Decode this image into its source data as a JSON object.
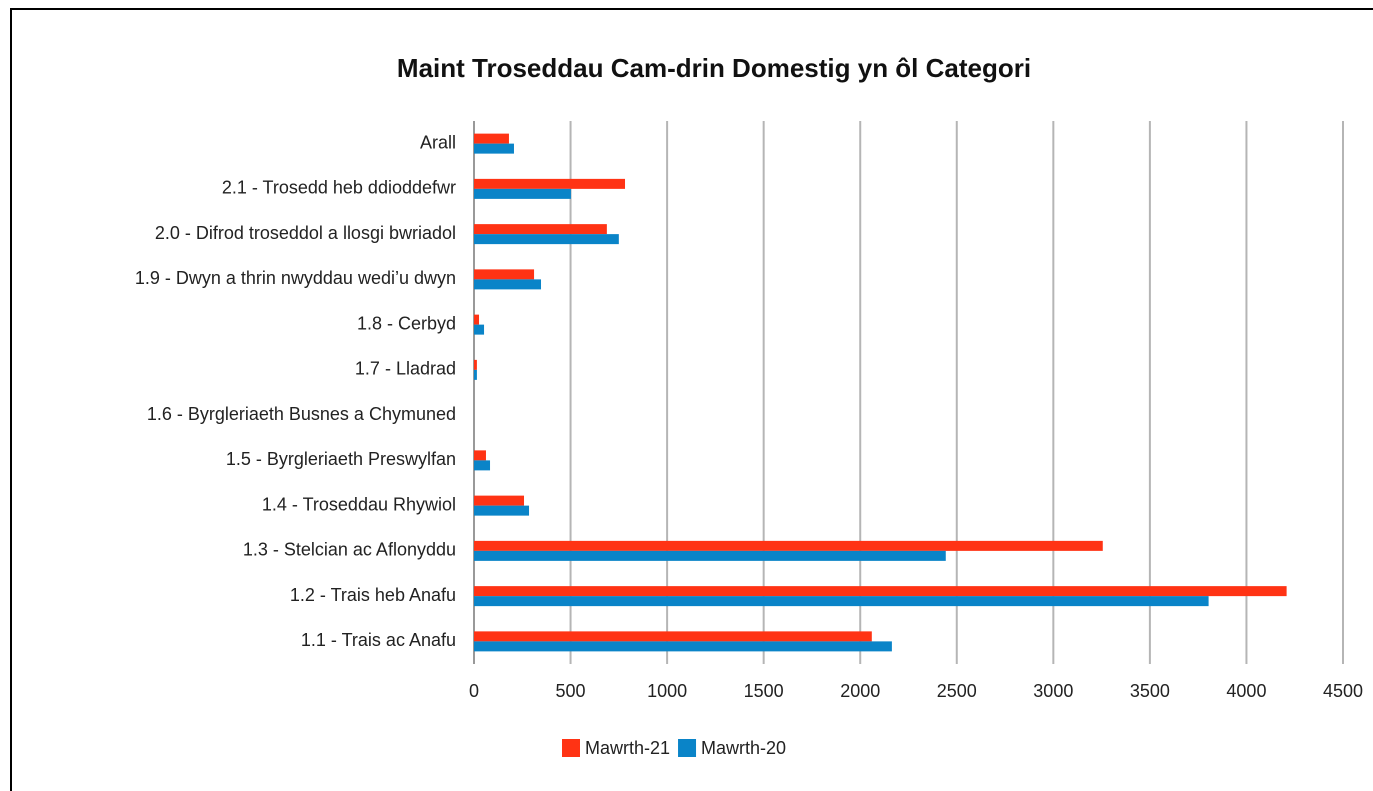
{
  "chart_data": {
    "type": "hbar",
    "title": "Maint Troseddau Cam-drin Domestig yn ôl Categori",
    "categories": [
      "Arall",
      "2.1 - Trosedd heb ddioddefwr",
      "2.0 - Difrod troseddol a llosgi bwriadol",
      "1.9 - Dwyn a thrin nwyddau wedi’u dwyn",
      "1.8 - Cerbyd",
      "1.7 - Lladrad",
      "1.6 - Byrgleriaeth Busnes a Chymuned",
      "1.5 - Byrgleriaeth Preswylfan",
      "1.4 - Troseddau Rhywiol",
      "1.3 - Stelcian ac Aflonyddu",
      "1.2 - Trais heb Anafu",
      "1.1 - Trais ac Anafu"
    ],
    "series": [
      {
        "name": "Mawrth-21",
        "color": "#ff3314",
        "values": [
          181,
          782,
          688,
          311,
          26,
          15,
          0,
          62,
          259,
          3256,
          4208,
          2060
        ]
      },
      {
        "name": "Mawrth-20",
        "color": "#0a84c8",
        "values": [
          207,
          502,
          750,
          347,
          52,
          15,
          0,
          83,
          285,
          2443,
          3804,
          2164
        ]
      }
    ],
    "xlim": [
      0,
      4500
    ],
    "xticks": [
      0,
      500,
      1000,
      1500,
      2000,
      2500,
      3000,
      3500,
      4000,
      4500
    ],
    "grid": true,
    "legend": "bottom"
  }
}
